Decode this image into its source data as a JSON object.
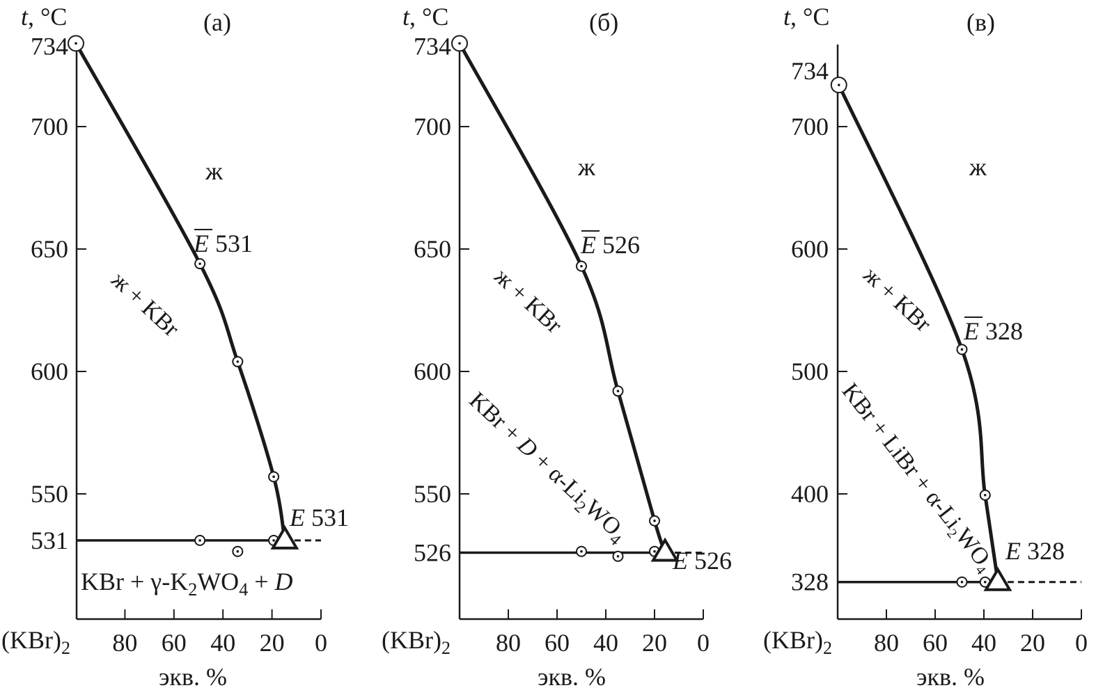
{
  "chart_data": [
    {
      "type": "line",
      "title": "(а)",
      "ylabel_var": "t",
      "ylabel_unit": ", °C",
      "xlabel": "экв. %",
      "x_left_label": "(KBr)",
      "x_left_sub": "2",
      "xlim": [
        100,
        0
      ],
      "ylim": [
        499,
        734
      ],
      "x_ticks": [
        80,
        60,
        40,
        20,
        0
      ],
      "y_ticks": [
        734,
        700,
        650,
        600,
        550,
        531
      ],
      "liquidus": [
        [
          100,
          734
        ],
        [
          49.4,
          644
        ],
        [
          34,
          604
        ],
        [
          19.3,
          557
        ],
        [
          14.8,
          531
        ]
      ],
      "liquidus_points": [
        [
          100,
          734
        ],
        [
          49.4,
          644
        ],
        [
          34,
          604
        ],
        [
          19.3,
          557
        ]
      ],
      "eutectic_line": {
        "t": 531,
        "from": 100,
        "to": 14.8,
        "dashed_to": 0
      },
      "eutectic_points": [
        [
          49.4,
          531
        ],
        [
          19.3,
          531
        ],
        [
          34,
          526.5
        ]
      ],
      "eutectic": {
        "x": 14.8,
        "t": 531,
        "letter": "E",
        "value": "531"
      },
      "ebar": {
        "letter": "E",
        "value": "531"
      },
      "regions": {
        "liquid": "ж",
        "liquid_solid": "ж + KBr",
        "solid": {
          "p1": "KBr + γ-K",
          "s1": "2",
          "p2": "WO",
          "s2": "4",
          "p3": " + ",
          "it": "D"
        }
      }
    },
    {
      "type": "line",
      "title": "(б)",
      "ylabel_var": "t",
      "ylabel_unit": ", °C",
      "xlabel": "экв. %",
      "x_left_label": "(KBr)",
      "x_left_sub": "2",
      "xlim": [
        100,
        0
      ],
      "ylim": [
        512,
        734
      ],
      "x_ticks": [
        80,
        60,
        40,
        20,
        0
      ],
      "y_ticks": [
        734,
        700,
        650,
        600,
        550,
        526
      ],
      "liquidus": [
        [
          100,
          734
        ],
        [
          50,
          643
        ],
        [
          35,
          592
        ],
        [
          20,
          539
        ],
        [
          15.7,
          526
        ]
      ],
      "liquidus_points": [
        [
          100,
          734
        ],
        [
          50,
          643
        ],
        [
          35,
          592
        ],
        [
          20,
          539
        ]
      ],
      "eutectic_line": {
        "t": 526,
        "from": 100,
        "to": 15.7,
        "dashed_to": 0
      },
      "eutectic_points": [
        [
          50,
          526.5
        ],
        [
          35,
          524.5
        ],
        [
          20,
          526.5
        ]
      ],
      "eutectic": {
        "x": 15.7,
        "t": 526,
        "letter": "E",
        "value": "526"
      },
      "ebar": {
        "letter": "E",
        "value": "526"
      },
      "regions": {
        "liquid": "ж",
        "liquid_solid": "ж + KBr",
        "solid": {
          "p1": "KBr + ",
          "it": "D",
          "p2": " + α-Li",
          "s1": "2",
          "p3": "WO",
          "s2": "4"
        }
      }
    },
    {
      "type": "line",
      "title": "(в)",
      "ylabel_var": "t",
      "ylabel_unit": ", °C",
      "xlabel": "экв. %",
      "x_left_label": "(KBr)",
      "x_left_sub": "2",
      "xlim": [
        100,
        0
      ],
      "ylim": [
        300,
        734
      ],
      "x_ticks": [
        80,
        60,
        40,
        20,
        0
      ],
      "y_ticks": [
        734,
        700,
        600,
        500,
        400,
        328
      ],
      "liquidus": [
        [
          99.5,
          734
        ],
        [
          49,
          518
        ],
        [
          39.5,
          399
        ],
        [
          34.3,
          329
        ]
      ],
      "liquidus_points": [
        [
          99.5,
          734
        ],
        [
          49,
          518
        ],
        [
          39.5,
          399
        ]
      ],
      "eutectic_line": {
        "t": 328,
        "from": 100,
        "to": 34.3,
        "dashed_to": 0
      },
      "eutectic_points": [
        [
          49,
          328
        ],
        [
          39.5,
          328
        ]
      ],
      "eutectic": {
        "x": 34.3,
        "t": 328,
        "letter": "E",
        "value": "328"
      },
      "ebar": {
        "letter": "E",
        "value": "328"
      },
      "regions": {
        "liquid": "ж",
        "liquid_solid": "ж + KBr",
        "solid": {
          "p1": "KBr + LiBr + α-Li",
          "s1": "2",
          "p2": "WO",
          "s2": "4"
        }
      }
    }
  ]
}
